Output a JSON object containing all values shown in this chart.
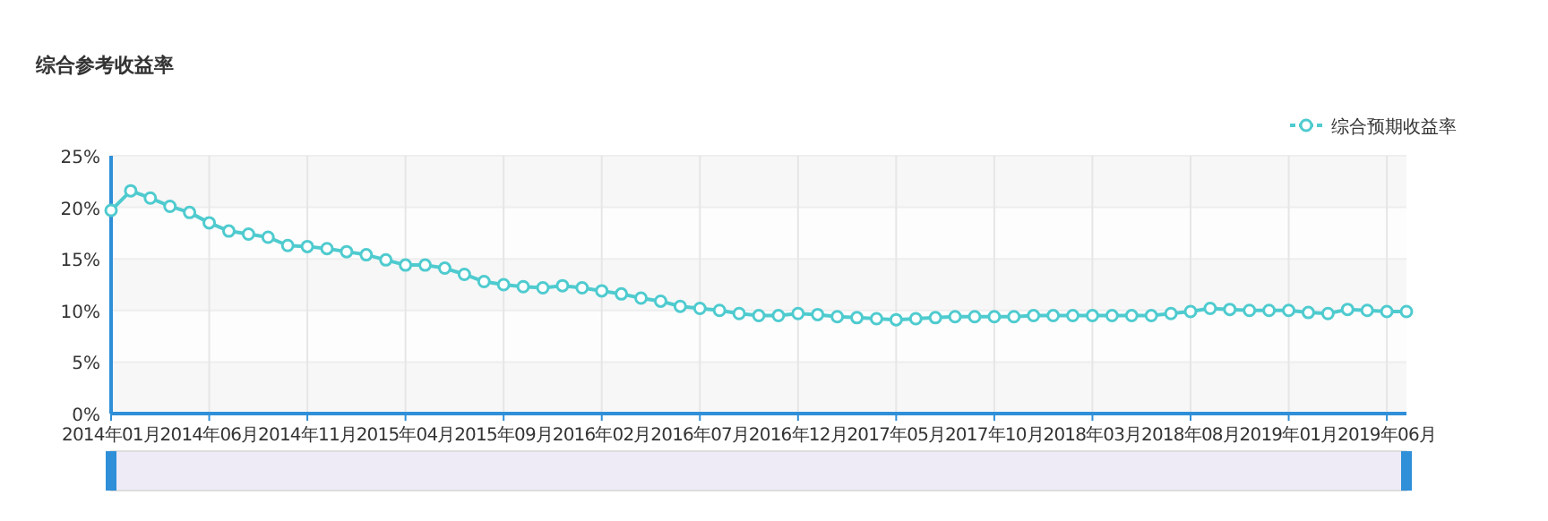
{
  "chart_data": {
    "type": "line",
    "title": "综合参考收益率",
    "categories": [
      "2014年01月",
      null,
      null,
      null,
      null,
      "2014年06月",
      null,
      null,
      null,
      null,
      "2014年11月",
      null,
      null,
      null,
      null,
      "2015年04月",
      null,
      null,
      null,
      null,
      "2015年09月",
      null,
      null,
      null,
      null,
      "2016年02月",
      null,
      null,
      null,
      null,
      "2016年07月",
      null,
      null,
      null,
      null,
      "2016年12月",
      null,
      null,
      null,
      null,
      "2017年05月",
      null,
      null,
      null,
      null,
      "2017年10月",
      null,
      null,
      null,
      null,
      "2018年03月",
      null,
      null,
      null,
      null,
      "2018年08月",
      null,
      null,
      null,
      null,
      "2019年01月",
      null,
      null,
      null,
      null,
      "2019年06月",
      null
    ],
    "series": [
      {
        "name": "综合预期收益率",
        "color": "#4fcbcf",
        "values": [
          19.7,
          21.6,
          20.9,
          20.1,
          19.5,
          18.5,
          17.7,
          17.4,
          17.1,
          16.3,
          16.2,
          16.0,
          15.7,
          15.4,
          14.9,
          14.4,
          14.4,
          14.1,
          13.5,
          12.8,
          12.5,
          12.3,
          12.2,
          12.4,
          12.2,
          11.9,
          11.6,
          11.2,
          10.9,
          10.4,
          10.2,
          10.0,
          9.7,
          9.5,
          9.5,
          9.7,
          9.6,
          9.4,
          9.3,
          9.2,
          9.1,
          9.2,
          9.3,
          9.4,
          9.4,
          9.4,
          9.4,
          9.5,
          9.5,
          9.5,
          9.5,
          9.5,
          9.5,
          9.5,
          9.7,
          9.9,
          10.2,
          10.1,
          10.0,
          10.0,
          10.0,
          9.8,
          9.7,
          10.1,
          10.0,
          9.9,
          9.9
        ]
      }
    ],
    "ylim": [
      0,
      25
    ],
    "yticks": [
      {
        "value": 0,
        "label": "0%"
      },
      {
        "value": 5,
        "label": "5%"
      },
      {
        "value": 10,
        "label": "10%"
      },
      {
        "value": 15,
        "label": "15%"
      },
      {
        "value": 20,
        "label": "20%"
      },
      {
        "value": 25,
        "label": "25%"
      }
    ],
    "grid": true,
    "legend": "top right",
    "marker": "circle",
    "line_style": "solid"
  }
}
